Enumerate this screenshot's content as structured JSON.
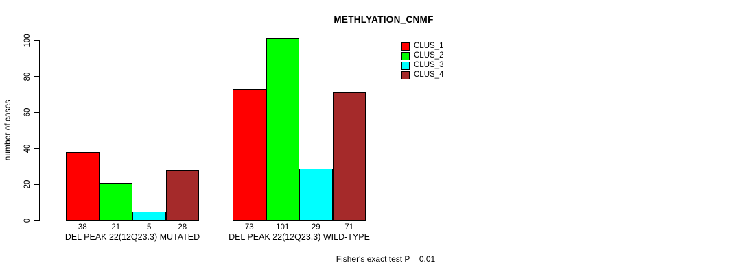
{
  "title": "METHLYATION_CNMF",
  "y_axis_label": "number of cases",
  "footer": "Fisher's exact test P = 0.01",
  "legend": {
    "position": "top-right",
    "items": [
      {
        "label": "CLUS_1",
        "color": "#FF0000"
      },
      {
        "label": "CLUS_2",
        "color": "#00FF00"
      },
      {
        "label": "CLUS_3",
        "color": "#00FFFF"
      },
      {
        "label": "CLUS_4",
        "color": "#A52A2A"
      }
    ]
  },
  "chart_data": {
    "type": "bar",
    "title": "METHLYATION_CNMF",
    "ylabel": "number of cases",
    "xlabel": "",
    "ylim": [
      0,
      105
    ],
    "yticks": [
      0,
      20,
      40,
      60,
      80,
      100
    ],
    "grid": false,
    "legend_position": "right",
    "categories": [
      "DEL PEAK 22(12Q23.3) MUTATED",
      "DEL PEAK 22(12Q23.3) WILD-TYPE"
    ],
    "series": [
      {
        "name": "CLUS_1",
        "color": "#FF0000",
        "values": [
          38,
          73
        ]
      },
      {
        "name": "CLUS_2",
        "color": "#00FF00",
        "values": [
          21,
          101
        ]
      },
      {
        "name": "CLUS_3",
        "color": "#00FFFF",
        "values": [
          5,
          29
        ]
      },
      {
        "name": "CLUS_4",
        "color": "#A52A2A",
        "values": [
          28,
          71
        ]
      }
    ],
    "bar_value_labels": [
      [
        38,
        21,
        5,
        28
      ],
      [
        73,
        101,
        29,
        71
      ]
    ],
    "annotation": "Fisher's exact test P = 0.01"
  }
}
